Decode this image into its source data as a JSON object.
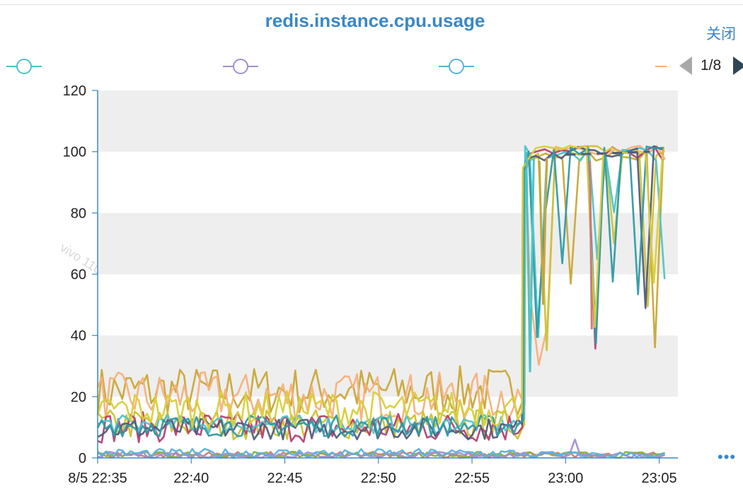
{
  "title": "redis.instance.cpu.usage",
  "close_label": "关闭",
  "pager": {
    "label": "1/8"
  },
  "more_label": "•••",
  "watermark": "vivo 11086812",
  "legend": [
    {
      "color": "#4fc3c9"
    },
    {
      "color": "#a48fd0"
    },
    {
      "color": "#5bb2dd"
    },
    {
      "color": "#f5b07a"
    }
  ],
  "colors": {
    "grid_band": "#eeeeee",
    "axis": "#3a87c6",
    "text": "#222222",
    "palette": [
      "#c9a636",
      "#f5b07a",
      "#ccc233",
      "#b83f74",
      "#4fc3c9",
      "#525d79",
      "#2f9aa5",
      "#d8cf3a",
      "#c97b7b",
      "#86b33a",
      "#a48fd0",
      "#5bb2dd"
    ]
  },
  "chart_data": {
    "type": "line",
    "title": "redis.instance.cpu.usage",
    "xlabel": "",
    "ylabel": "",
    "ylim": [
      0,
      120
    ],
    "y_ticks": [
      0,
      20,
      40,
      60,
      80,
      100,
      120
    ],
    "x_range": [
      "22:35",
      "23:06"
    ],
    "x_ticks": [
      "8/5 22:35",
      "22:40",
      "22:45",
      "22:50",
      "22:55",
      "23:00",
      "23:05"
    ],
    "grid": true,
    "legend_position": "top",
    "series": [
      {
        "values_approx": {
          "22:35-22:57": "fluctuating between 15 and 30",
          "22:57": "jump to ~100",
          "22:58": "dip to ~50",
          "22:58-23:05": "near 100"
        }
      },
      {
        "values_approx": {
          "22:35-22:57": "fluctuating between 12 and 30",
          "22:57-23:05": "near 100, brief dips to ~85"
        }
      },
      {
        "values_approx": {
          "22:35-22:57": "fluctuating between 5 and 15",
          "22:57": "jump to ~100",
          "23:01": "dip to ~42"
        }
      },
      {
        "values_approx": {
          "22:35-22:57": "fluctuating between 5 and 16",
          "22:57": "jump to ~100",
          "22:57-23:01": "near 100, dips to 28 and 70"
        }
      },
      {
        "values_approx": {
          "22:35-23:06": "mostly 0-3",
          "23:00": "spike to ~6"
        }
      }
    ]
  }
}
